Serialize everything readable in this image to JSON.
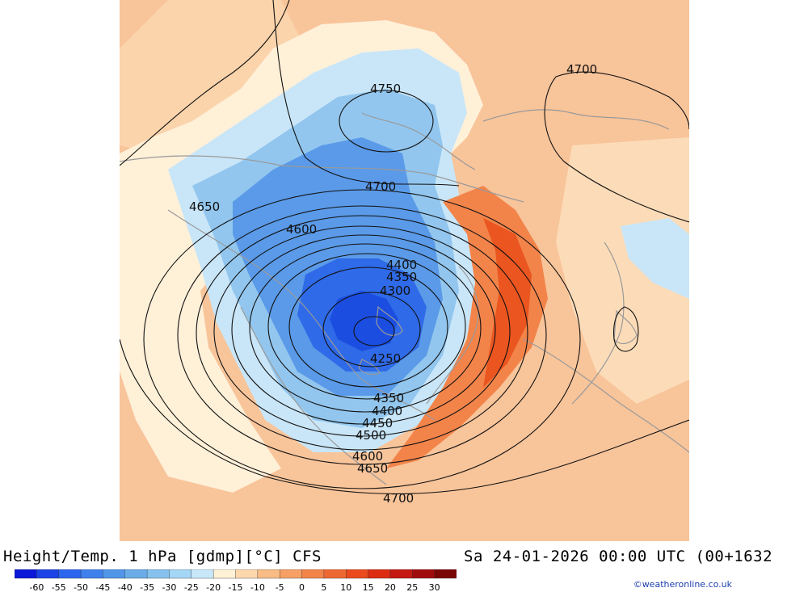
{
  "title": {
    "left": "Height/Temp. 1 hPa [gdmp][°C] CFS",
    "right": "Sa 24-01-2026 00:00 UTC (00+1632"
  },
  "credit": "©weatheronline.co.uk",
  "colorbar": {
    "tick_labels": [
      "-60",
      "-55",
      "-50",
      "-45",
      "-40",
      "-35",
      "-30",
      "-25",
      "-20",
      "-15",
      "-10",
      "-5",
      "0",
      "5",
      "10",
      "15",
      "20",
      "25",
      "30"
    ],
    "colors": [
      "#0b18d8",
      "#1b44e6",
      "#2c66ee",
      "#3f80ec",
      "#5196e8",
      "#69ace8",
      "#86c2ee",
      "#a4d6f5",
      "#c8e8fa",
      "#fff1d6",
      "#fcd8ac",
      "#f8bc84",
      "#f6a066",
      "#f2844a",
      "#ee6832",
      "#ea4a1e",
      "#dc2c12",
      "#c41810",
      "#a00c0c",
      "#7a0606"
    ]
  },
  "map": {
    "contour_labels": [
      {
        "text": "4750"
      },
      {
        "text": "4700"
      },
      {
        "text": "4700"
      },
      {
        "text": "4650"
      },
      {
        "text": "4600"
      },
      {
        "text": "4400"
      },
      {
        "text": "4350"
      },
      {
        "text": "4300"
      },
      {
        "text": "4250"
      },
      {
        "text": "4350"
      },
      {
        "text": "4400"
      },
      {
        "text": "4450"
      },
      {
        "text": "4500"
      },
      {
        "text": "4600"
      },
      {
        "text": "4650"
      },
      {
        "text": "4700"
      }
    ]
  }
}
